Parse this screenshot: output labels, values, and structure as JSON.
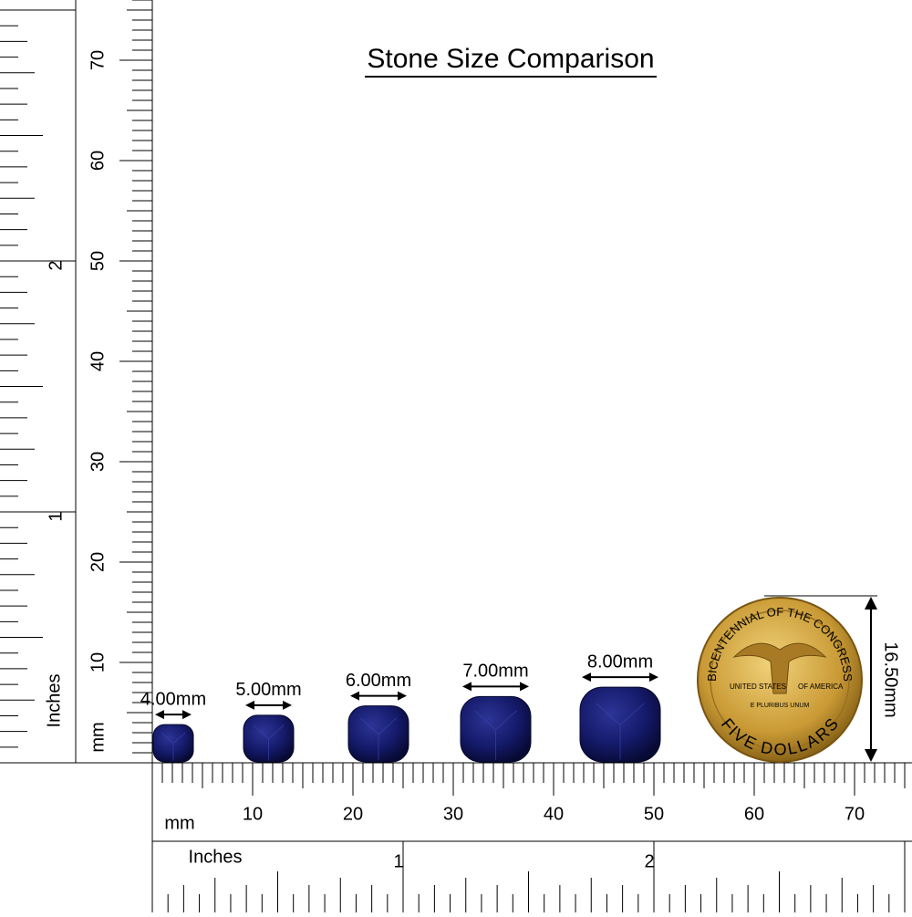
{
  "title": "Stone Size Comparison",
  "rulers": {
    "mm_label": "mm",
    "inch_label": "Inches",
    "mm_ticks": [
      10,
      20,
      30,
      40,
      50,
      60,
      70
    ],
    "inch_ticks": [
      1,
      2
    ]
  },
  "stones": [
    {
      "label": "4.00mm"
    },
    {
      "label": "5.00mm"
    },
    {
      "label": "6.00mm"
    },
    {
      "label": "7.00mm"
    },
    {
      "label": "8.00mm"
    }
  ],
  "coin": {
    "label": "16.50mm",
    "top_text": "BICENTENNIAL OF THE CONGRESS",
    "left_text": "UNITED STATES",
    "right_text": "OF AMERICA",
    "motto": "E PLURIBUS UNUM",
    "bottom_text": "FIVE DOLLARS"
  }
}
